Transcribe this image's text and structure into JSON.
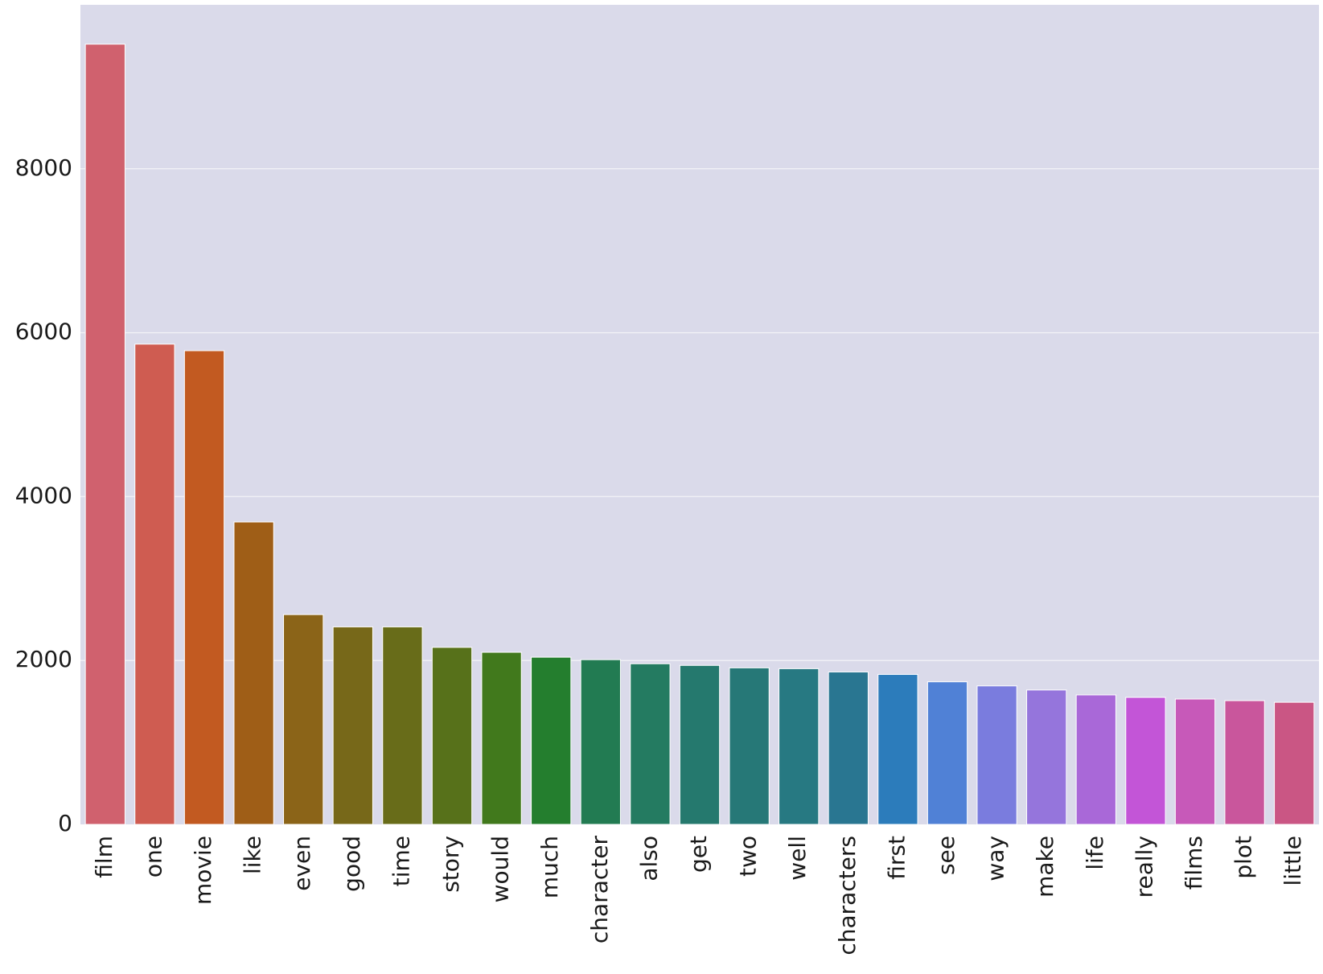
{
  "chart_data": {
    "type": "bar",
    "title": "",
    "xlabel": "",
    "ylabel": "",
    "categories": [
      "film",
      "one",
      "movie",
      "like",
      "even",
      "good",
      "time",
      "story",
      "would",
      "much",
      "character",
      "also",
      "get",
      "two",
      "well",
      "characters",
      "first",
      "see",
      "way",
      "make",
      "life",
      "really",
      "films",
      "plot",
      "little"
    ],
    "values": [
      9520,
      5860,
      5780,
      3690,
      2560,
      2410,
      2410,
      2160,
      2100,
      2040,
      2010,
      1960,
      1940,
      1910,
      1900,
      1860,
      1830,
      1740,
      1690,
      1640,
      1580,
      1550,
      1530,
      1510,
      1490
    ],
    "ylim": [
      0,
      10000
    ],
    "yticks": [
      0,
      2000,
      4000,
      6000,
      8000
    ],
    "ytick_labels": [
      "0",
      "2000",
      "4000",
      "6000",
      "8000"
    ],
    "grid": true,
    "background_color": "#dadaea",
    "grid_color": "#f0f0f6",
    "colors": [
      "#d0616e",
      "#cf5c51",
      "#c25a21",
      "#9f5e17",
      "#8b6418",
      "#776819",
      "#686c19",
      "#57711a",
      "#41791c",
      "#247e2e",
      "#227b52",
      "#247b61",
      "#25796e",
      "#267877",
      "#277982",
      "#297691",
      "#2c7cbb",
      "#5081d6",
      "#7a7cde",
      "#9575dc",
      "#a968d8",
      "#c355d7",
      "#c759b9",
      "#c9569c",
      "#ca5684"
    ]
  }
}
